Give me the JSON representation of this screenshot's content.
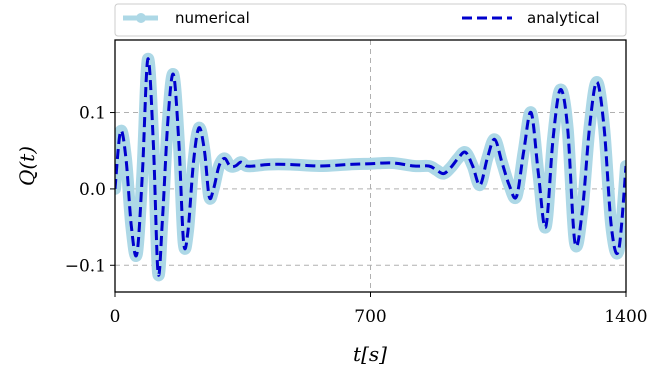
{
  "chart_data": {
    "type": "line",
    "xlabel": "t[s]",
    "ylabel": "Q(t)",
    "xlim": [
      0,
      1400
    ],
    "ylim": [
      -0.135,
      0.195
    ],
    "xticks": [
      0,
      700,
      1400
    ],
    "xtick_labels": [
      "0",
      "700",
      "1400"
    ],
    "yticks": [
      -0.1,
      0.0,
      0.1
    ],
    "ytick_labels": [
      "−0.1",
      "0.0",
      "0.1"
    ],
    "grid": true,
    "legend_position": "top",
    "series": [
      {
        "name": "numerical",
        "style": "solid-thick-markers",
        "color": "#add8e6",
        "x": [
          0,
          15,
          30,
          45,
          60,
          75,
          90,
          105,
          118,
          130,
          145,
          160,
          175,
          188,
          200,
          215,
          230,
          245,
          258,
          270,
          285,
          300,
          315,
          330,
          345,
          360,
          380,
          420,
          480,
          560,
          640,
          700,
          760,
          820,
          860,
          880,
          900,
          920,
          940,
          960,
          980,
          1000,
          1020,
          1040,
          1060,
          1080,
          1100,
          1120,
          1140,
          1160,
          1180,
          1200,
          1220,
          1240,
          1260,
          1280,
          1300,
          1320,
          1340,
          1360,
          1380,
          1400
        ],
        "y": [
          0.0,
          0.075,
          0.04,
          -0.05,
          -0.085,
          0.02,
          0.17,
          0.06,
          -0.11,
          -0.04,
          0.09,
          0.15,
          0.06,
          -0.07,
          -0.055,
          0.035,
          0.08,
          0.05,
          -0.01,
          0.0,
          0.03,
          0.04,
          0.03,
          0.03,
          0.035,
          0.03,
          0.03,
          0.032,
          0.032,
          0.03,
          0.032,
          0.033,
          0.034,
          0.03,
          0.03,
          0.025,
          0.02,
          0.028,
          0.04,
          0.048,
          0.03,
          0.005,
          0.04,
          0.065,
          0.035,
          0.005,
          -0.01,
          0.05,
          0.1,
          0.02,
          -0.05,
          0.065,
          0.13,
          0.08,
          -0.07,
          -0.03,
          0.08,
          0.14,
          0.08,
          -0.05,
          -0.08,
          0.03
        ]
      },
      {
        "name": "analytical",
        "style": "dashed",
        "color": "#0000cd",
        "x": [
          0,
          15,
          30,
          45,
          60,
          75,
          90,
          105,
          118,
          130,
          145,
          160,
          175,
          188,
          200,
          215,
          230,
          245,
          258,
          270,
          285,
          300,
          315,
          330,
          345,
          360,
          380,
          420,
          480,
          560,
          640,
          700,
          760,
          820,
          860,
          880,
          900,
          920,
          940,
          960,
          980,
          1000,
          1020,
          1040,
          1060,
          1080,
          1100,
          1120,
          1140,
          1160,
          1180,
          1200,
          1220,
          1240,
          1260,
          1280,
          1300,
          1320,
          1340,
          1360,
          1380,
          1400
        ],
        "y": [
          0.0,
          0.075,
          0.04,
          -0.05,
          -0.085,
          0.02,
          0.17,
          0.06,
          -0.11,
          -0.04,
          0.09,
          0.15,
          0.06,
          -0.07,
          -0.055,
          0.035,
          0.08,
          0.05,
          -0.01,
          0.0,
          0.03,
          0.04,
          0.03,
          0.03,
          0.035,
          0.03,
          0.03,
          0.032,
          0.032,
          0.03,
          0.032,
          0.033,
          0.034,
          0.03,
          0.03,
          0.025,
          0.02,
          0.028,
          0.04,
          0.048,
          0.03,
          0.005,
          0.04,
          0.065,
          0.035,
          0.005,
          -0.01,
          0.05,
          0.1,
          0.02,
          -0.05,
          0.065,
          0.13,
          0.08,
          -0.07,
          -0.03,
          0.08,
          0.14,
          0.08,
          -0.05,
          -0.08,
          0.03
        ]
      }
    ]
  },
  "legend": {
    "numerical_label": "numerical",
    "analytical_label": "analytical"
  },
  "axes": {
    "xlabel": "t[s]",
    "ylabel": "Q(t)"
  }
}
